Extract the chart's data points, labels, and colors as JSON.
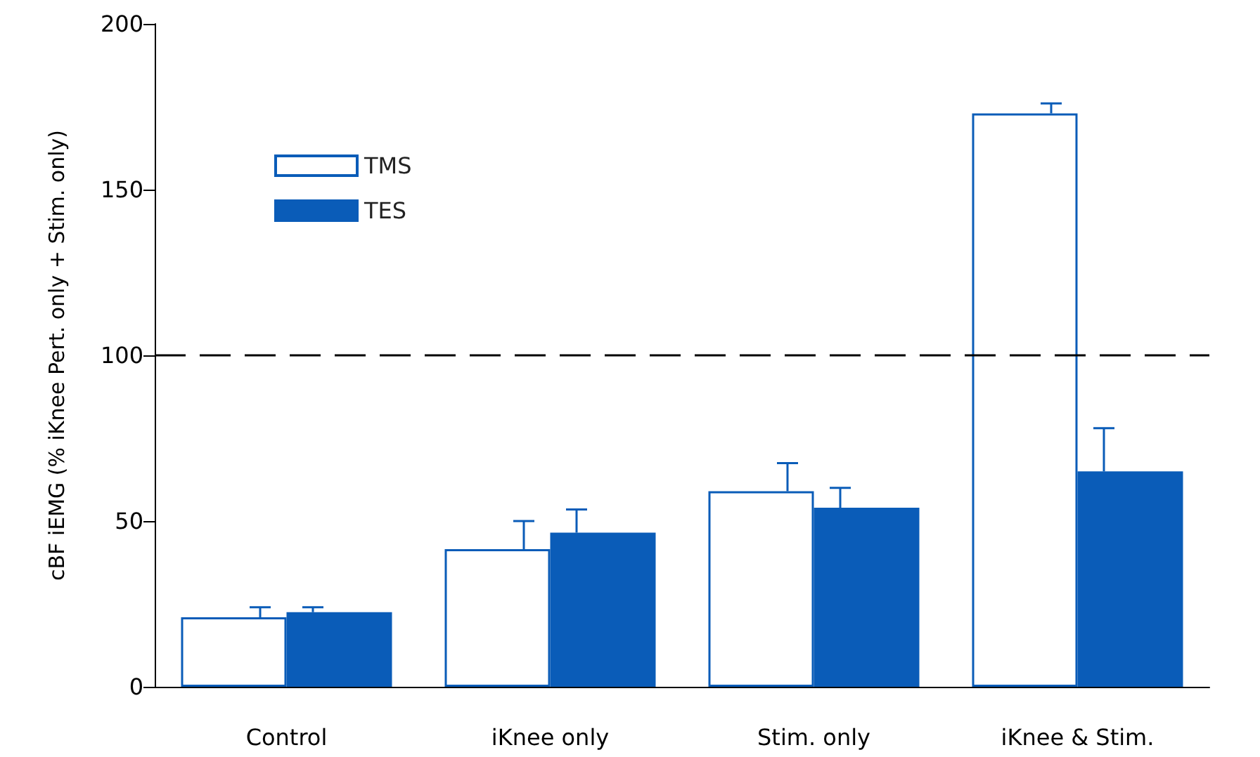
{
  "chart_data": {
    "type": "bar",
    "ylabel": "cBF iEMG (% iKnee Pert. only + Stim. only)",
    "categories": [
      "Control",
      "iKnee only",
      "Stim. only",
      "iKnee & Stim."
    ],
    "series": [
      {
        "name": "TMS",
        "color": "#ffffff",
        "values": [
          21,
          41.5,
          59,
          173
        ],
        "errors": [
          [
            21,
            24
          ],
          [
            41.5,
            50
          ],
          [
            59,
            67.5
          ],
          [
            173,
            176
          ]
        ]
      },
      {
        "name": "TES",
        "color": "#0a5cb8",
        "values": [
          22.5,
          46.5,
          54,
          65
        ],
        "errors": [
          [
            22.5,
            24
          ],
          [
            46.5,
            53.5
          ],
          [
            54,
            60
          ],
          [
            65,
            78
          ]
        ]
      }
    ],
    "ylim": [
      0,
      200
    ],
    "yticks": [
      0,
      50,
      100,
      150,
      200
    ],
    "grid": false,
    "legend": "top left",
    "ref_lines": [
      {
        "axis": "y",
        "value": 100,
        "color": "#000000",
        "line_style": "dashed"
      }
    ]
  }
}
